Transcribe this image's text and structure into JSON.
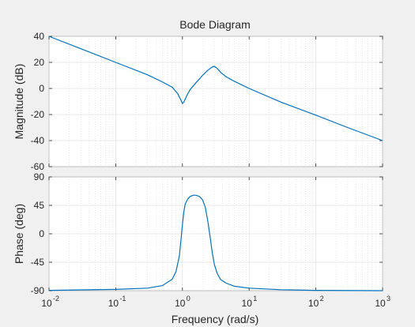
{
  "window": {
    "background": "#f0f0f0"
  },
  "chart_data": {
    "type": "line",
    "title": "Bode Diagram",
    "xlabel": "Frequency  (rad/s)",
    "xscale": "log",
    "xlim": [
      0.01,
      1000
    ],
    "x_ticks": [
      0.01,
      0.1,
      1,
      10,
      100,
      1000
    ],
    "x_tick_labels": [
      {
        "base": "10",
        "exp": "-2"
      },
      {
        "base": "10",
        "exp": "-1"
      },
      {
        "base": "10",
        "exp": "0"
      },
      {
        "base": "10",
        "exp": "1"
      },
      {
        "base": "10",
        "exp": "2"
      },
      {
        "base": "10",
        "exp": "3"
      }
    ],
    "grid": true,
    "minor_grid": true,
    "line_color": "#0072bd",
    "subplots": [
      {
        "name": "magnitude",
        "ylabel": "Magnitude (dB)",
        "ylim": [
          -60,
          40
        ],
        "y_ticks": [
          -60,
          -40,
          -20,
          0,
          20,
          40
        ],
        "y_tick_labels": [
          "-60",
          "-40",
          "-20",
          "0",
          "20",
          "40"
        ],
        "x": [
          0.01,
          0.03,
          0.1,
          0.3,
          0.5,
          0.7,
          0.85,
          0.95,
          1.0,
          1.05,
          1.15,
          1.3,
          1.6,
          2.0,
          2.4,
          2.8,
          3.0,
          3.3,
          3.8,
          4.5,
          6,
          10,
          30,
          100,
          300,
          1000
        ],
        "y": [
          40,
          30.5,
          20,
          10.5,
          5,
          1,
          -4,
          -9,
          -11.5,
          -10.5,
          -6,
          -1,
          4.5,
          10,
          14,
          16.5,
          17,
          15.5,
          12,
          9,
          5.5,
          0,
          -10.5,
          -20.5,
          -30,
          -40
        ]
      },
      {
        "name": "phase",
        "ylabel": "Phase (deg)",
        "ylim": [
          -90,
          90
        ],
        "y_ticks": [
          -90,
          -45,
          0,
          45,
          90
        ],
        "y_tick_labels": [
          "-90",
          "-45",
          "0",
          "45",
          "90"
        ],
        "x": [
          0.01,
          0.1,
          0.3,
          0.5,
          0.7,
          0.8,
          0.9,
          0.95,
          1.0,
          1.05,
          1.1,
          1.2,
          1.3,
          1.45,
          1.6,
          1.8,
          2.0,
          2.2,
          2.4,
          2.6,
          2.8,
          3.0,
          3.3,
          3.7,
          4.5,
          6,
          10,
          30,
          100,
          1000
        ],
        "y": [
          -89.5,
          -88,
          -86,
          -82,
          -72,
          -60,
          -35,
          -10,
          15,
          35,
          47,
          55,
          59,
          61,
          61,
          59,
          54,
          42,
          20,
          -5,
          -30,
          -48,
          -62,
          -72,
          -78,
          -83,
          -86,
          -88.5,
          -89.5,
          -90
        ]
      }
    ]
  }
}
